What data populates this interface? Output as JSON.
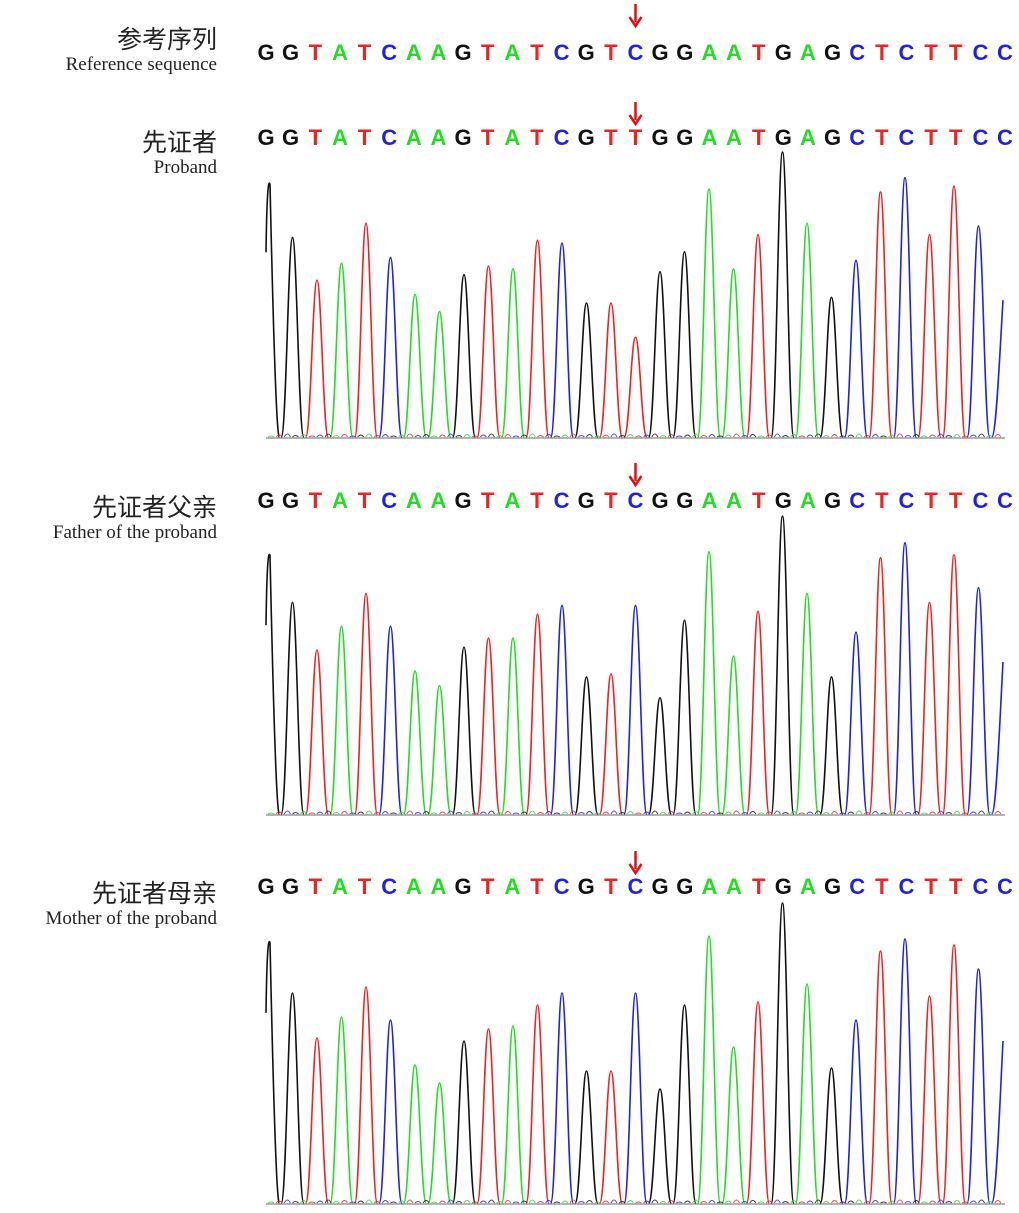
{
  "colors": {
    "A": "#22dd22",
    "C": "#2222dd",
    "G": "#111111",
    "T": "#ee2222",
    "arrow": "#dd1111"
  },
  "rows": [
    {
      "id": "reference",
      "label_zh": "参考序列",
      "label_en": "Reference sequence",
      "sequence": "GGTATCAAGTATCGTCGGAATGAGCTCTTCC",
      "has_trace": false,
      "variant_index": 15
    },
    {
      "id": "proband",
      "label_zh": "先证者",
      "label_en": "Proband",
      "sequence": "GGTATCAAGTATCGTTGGAATGAGCTCTTCC",
      "has_trace": true,
      "variant_index": 15
    },
    {
      "id": "father",
      "label_zh": "先证者父亲",
      "label_en": "Father of the proband",
      "sequence": "GGTATCAAGTATCGTCGGAATGAGCTCTTCC",
      "has_trace": true,
      "variant_index": 15
    },
    {
      "id": "mother",
      "label_zh": "先证者母亲",
      "label_en": "Mother of the proband",
      "sequence": "GGTATCAAGTATCGTCGGAATGAGCTCTTCC",
      "has_trace": true,
      "variant_index": 15
    }
  ],
  "chart_data": {
    "type": "line",
    "title": "",
    "xlabel": "",
    "ylabel": "",
    "variant_position": 16,
    "reference_base": "C",
    "proband_base": "T",
    "series": [
      {
        "sample": "Proband",
        "peaks": [
          {
            "base": "G",
            "height": 0.9
          },
          {
            "base": "G",
            "height": 0.7
          },
          {
            "base": "T",
            "height": 0.55
          },
          {
            "base": "A",
            "height": 0.61
          },
          {
            "base": "T",
            "height": 0.75
          },
          {
            "base": "C",
            "height": 0.63
          },
          {
            "base": "A",
            "height": 0.5
          },
          {
            "base": "A",
            "height": 0.44
          },
          {
            "base": "G",
            "height": 0.57
          },
          {
            "base": "T",
            "height": 0.6
          },
          {
            "base": "A",
            "height": 0.59
          },
          {
            "base": "T",
            "height": 0.69
          },
          {
            "base": "C",
            "height": 0.68
          },
          {
            "base": "G",
            "height": 0.47
          },
          {
            "base": "T",
            "height": 0.47
          },
          {
            "base": "T",
            "height": 0.35
          },
          {
            "base": "G",
            "height": 0.58
          },
          {
            "base": "G",
            "height": 0.65
          },
          {
            "base": "A",
            "height": 0.87
          },
          {
            "base": "A",
            "height": 0.59
          },
          {
            "base": "T",
            "height": 0.71
          },
          {
            "base": "G",
            "height": 1.0
          },
          {
            "base": "A",
            "height": 0.75
          },
          {
            "base": "G",
            "height": 0.49
          },
          {
            "base": "C",
            "height": 0.62
          },
          {
            "base": "T",
            "height": 0.86
          },
          {
            "base": "C",
            "height": 0.91
          },
          {
            "base": "T",
            "height": 0.71
          },
          {
            "base": "T",
            "height": 0.88
          },
          {
            "base": "C",
            "height": 0.74
          },
          {
            "base": "C",
            "height": 0.48
          }
        ]
      },
      {
        "sample": "Father of the proband",
        "peaks": [
          {
            "base": "G",
            "height": 0.88
          },
          {
            "base": "G",
            "height": 0.71
          },
          {
            "base": "T",
            "height": 0.55
          },
          {
            "base": "A",
            "height": 0.63
          },
          {
            "base": "T",
            "height": 0.74
          },
          {
            "base": "C",
            "height": 0.63
          },
          {
            "base": "A",
            "height": 0.48
          },
          {
            "base": "A",
            "height": 0.43
          },
          {
            "base": "G",
            "height": 0.56
          },
          {
            "base": "T",
            "height": 0.59
          },
          {
            "base": "A",
            "height": 0.59
          },
          {
            "base": "T",
            "height": 0.67
          },
          {
            "base": "C",
            "height": 0.7
          },
          {
            "base": "G",
            "height": 0.46
          },
          {
            "base": "T",
            "height": 0.47
          },
          {
            "base": "C",
            "height": 0.7
          },
          {
            "base": "G",
            "height": 0.39
          },
          {
            "base": "G",
            "height": 0.65
          },
          {
            "base": "A",
            "height": 0.88
          },
          {
            "base": "A",
            "height": 0.53
          },
          {
            "base": "T",
            "height": 0.68
          },
          {
            "base": "G",
            "height": 1.0
          },
          {
            "base": "A",
            "height": 0.74
          },
          {
            "base": "G",
            "height": 0.46
          },
          {
            "base": "C",
            "height": 0.61
          },
          {
            "base": "T",
            "height": 0.86
          },
          {
            "base": "C",
            "height": 0.91
          },
          {
            "base": "T",
            "height": 0.71
          },
          {
            "base": "T",
            "height": 0.87
          },
          {
            "base": "C",
            "height": 0.76
          },
          {
            "base": "C",
            "height": 0.51
          }
        ]
      },
      {
        "sample": "Mother of the proband",
        "peaks": [
          {
            "base": "G",
            "height": 0.88
          },
          {
            "base": "G",
            "height": 0.7
          },
          {
            "base": "T",
            "height": 0.55
          },
          {
            "base": "A",
            "height": 0.62
          },
          {
            "base": "T",
            "height": 0.72
          },
          {
            "base": "C",
            "height": 0.61
          },
          {
            "base": "A",
            "height": 0.46
          },
          {
            "base": "A",
            "height": 0.4
          },
          {
            "base": "G",
            "height": 0.54
          },
          {
            "base": "T",
            "height": 0.58
          },
          {
            "base": "A",
            "height": 0.59
          },
          {
            "base": "T",
            "height": 0.66
          },
          {
            "base": "C",
            "height": 0.7
          },
          {
            "base": "G",
            "height": 0.44
          },
          {
            "base": "T",
            "height": 0.44
          },
          {
            "base": "C",
            "height": 0.7
          },
          {
            "base": "G",
            "height": 0.38
          },
          {
            "base": "G",
            "height": 0.66
          },
          {
            "base": "A",
            "height": 0.89
          },
          {
            "base": "A",
            "height": 0.52
          },
          {
            "base": "T",
            "height": 0.67
          },
          {
            "base": "G",
            "height": 1.0
          },
          {
            "base": "A",
            "height": 0.73
          },
          {
            "base": "G",
            "height": 0.45
          },
          {
            "base": "C",
            "height": 0.61
          },
          {
            "base": "T",
            "height": 0.84
          },
          {
            "base": "C",
            "height": 0.88
          },
          {
            "base": "T",
            "height": 0.69
          },
          {
            "base": "T",
            "height": 0.86
          },
          {
            "base": "C",
            "height": 0.78
          },
          {
            "base": "C",
            "height": 0.54
          }
        ]
      }
    ]
  }
}
